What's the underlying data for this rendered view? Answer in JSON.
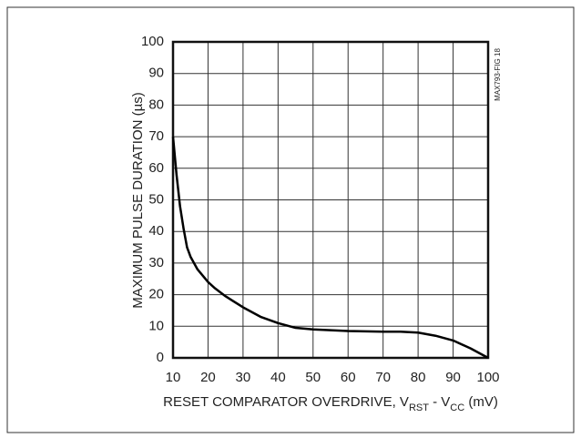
{
  "chart_data": {
    "type": "line",
    "x_label_parts": [
      {
        "text": "RESET COMPARATOR OVERDRIVE, V"
      },
      {
        "text": "RST",
        "sub": true
      },
      {
        "text": " - V"
      },
      {
        "text": "CC",
        "sub": true
      },
      {
        "text": " (mV)"
      }
    ],
    "y_label": "MAXIMUM PULSE DURATION (µs)",
    "figure_note": "MAX793-FIG 18",
    "xlim": [
      10,
      100
    ],
    "ylim": [
      0,
      100
    ],
    "xticks": [
      10,
      20,
      30,
      40,
      50,
      60,
      70,
      80,
      90,
      100
    ],
    "yticks": [
      0,
      10,
      20,
      30,
      40,
      50,
      60,
      70,
      80,
      90,
      100
    ],
    "grid": true,
    "series": [
      {
        "color": "#000000",
        "x": [
          10,
          11,
          12,
          13,
          14,
          15,
          17,
          20,
          22,
          25,
          30,
          35,
          40,
          45,
          50,
          60,
          70,
          75,
          80,
          85,
          90,
          95,
          100
        ],
        "values": [
          70,
          58,
          48,
          41,
          35,
          32,
          28,
          24,
          22,
          19.5,
          16,
          13,
          11,
          9.5,
          9,
          8.5,
          8.3,
          8.3,
          8,
          7,
          5.5,
          3,
          0
        ]
      }
    ]
  }
}
